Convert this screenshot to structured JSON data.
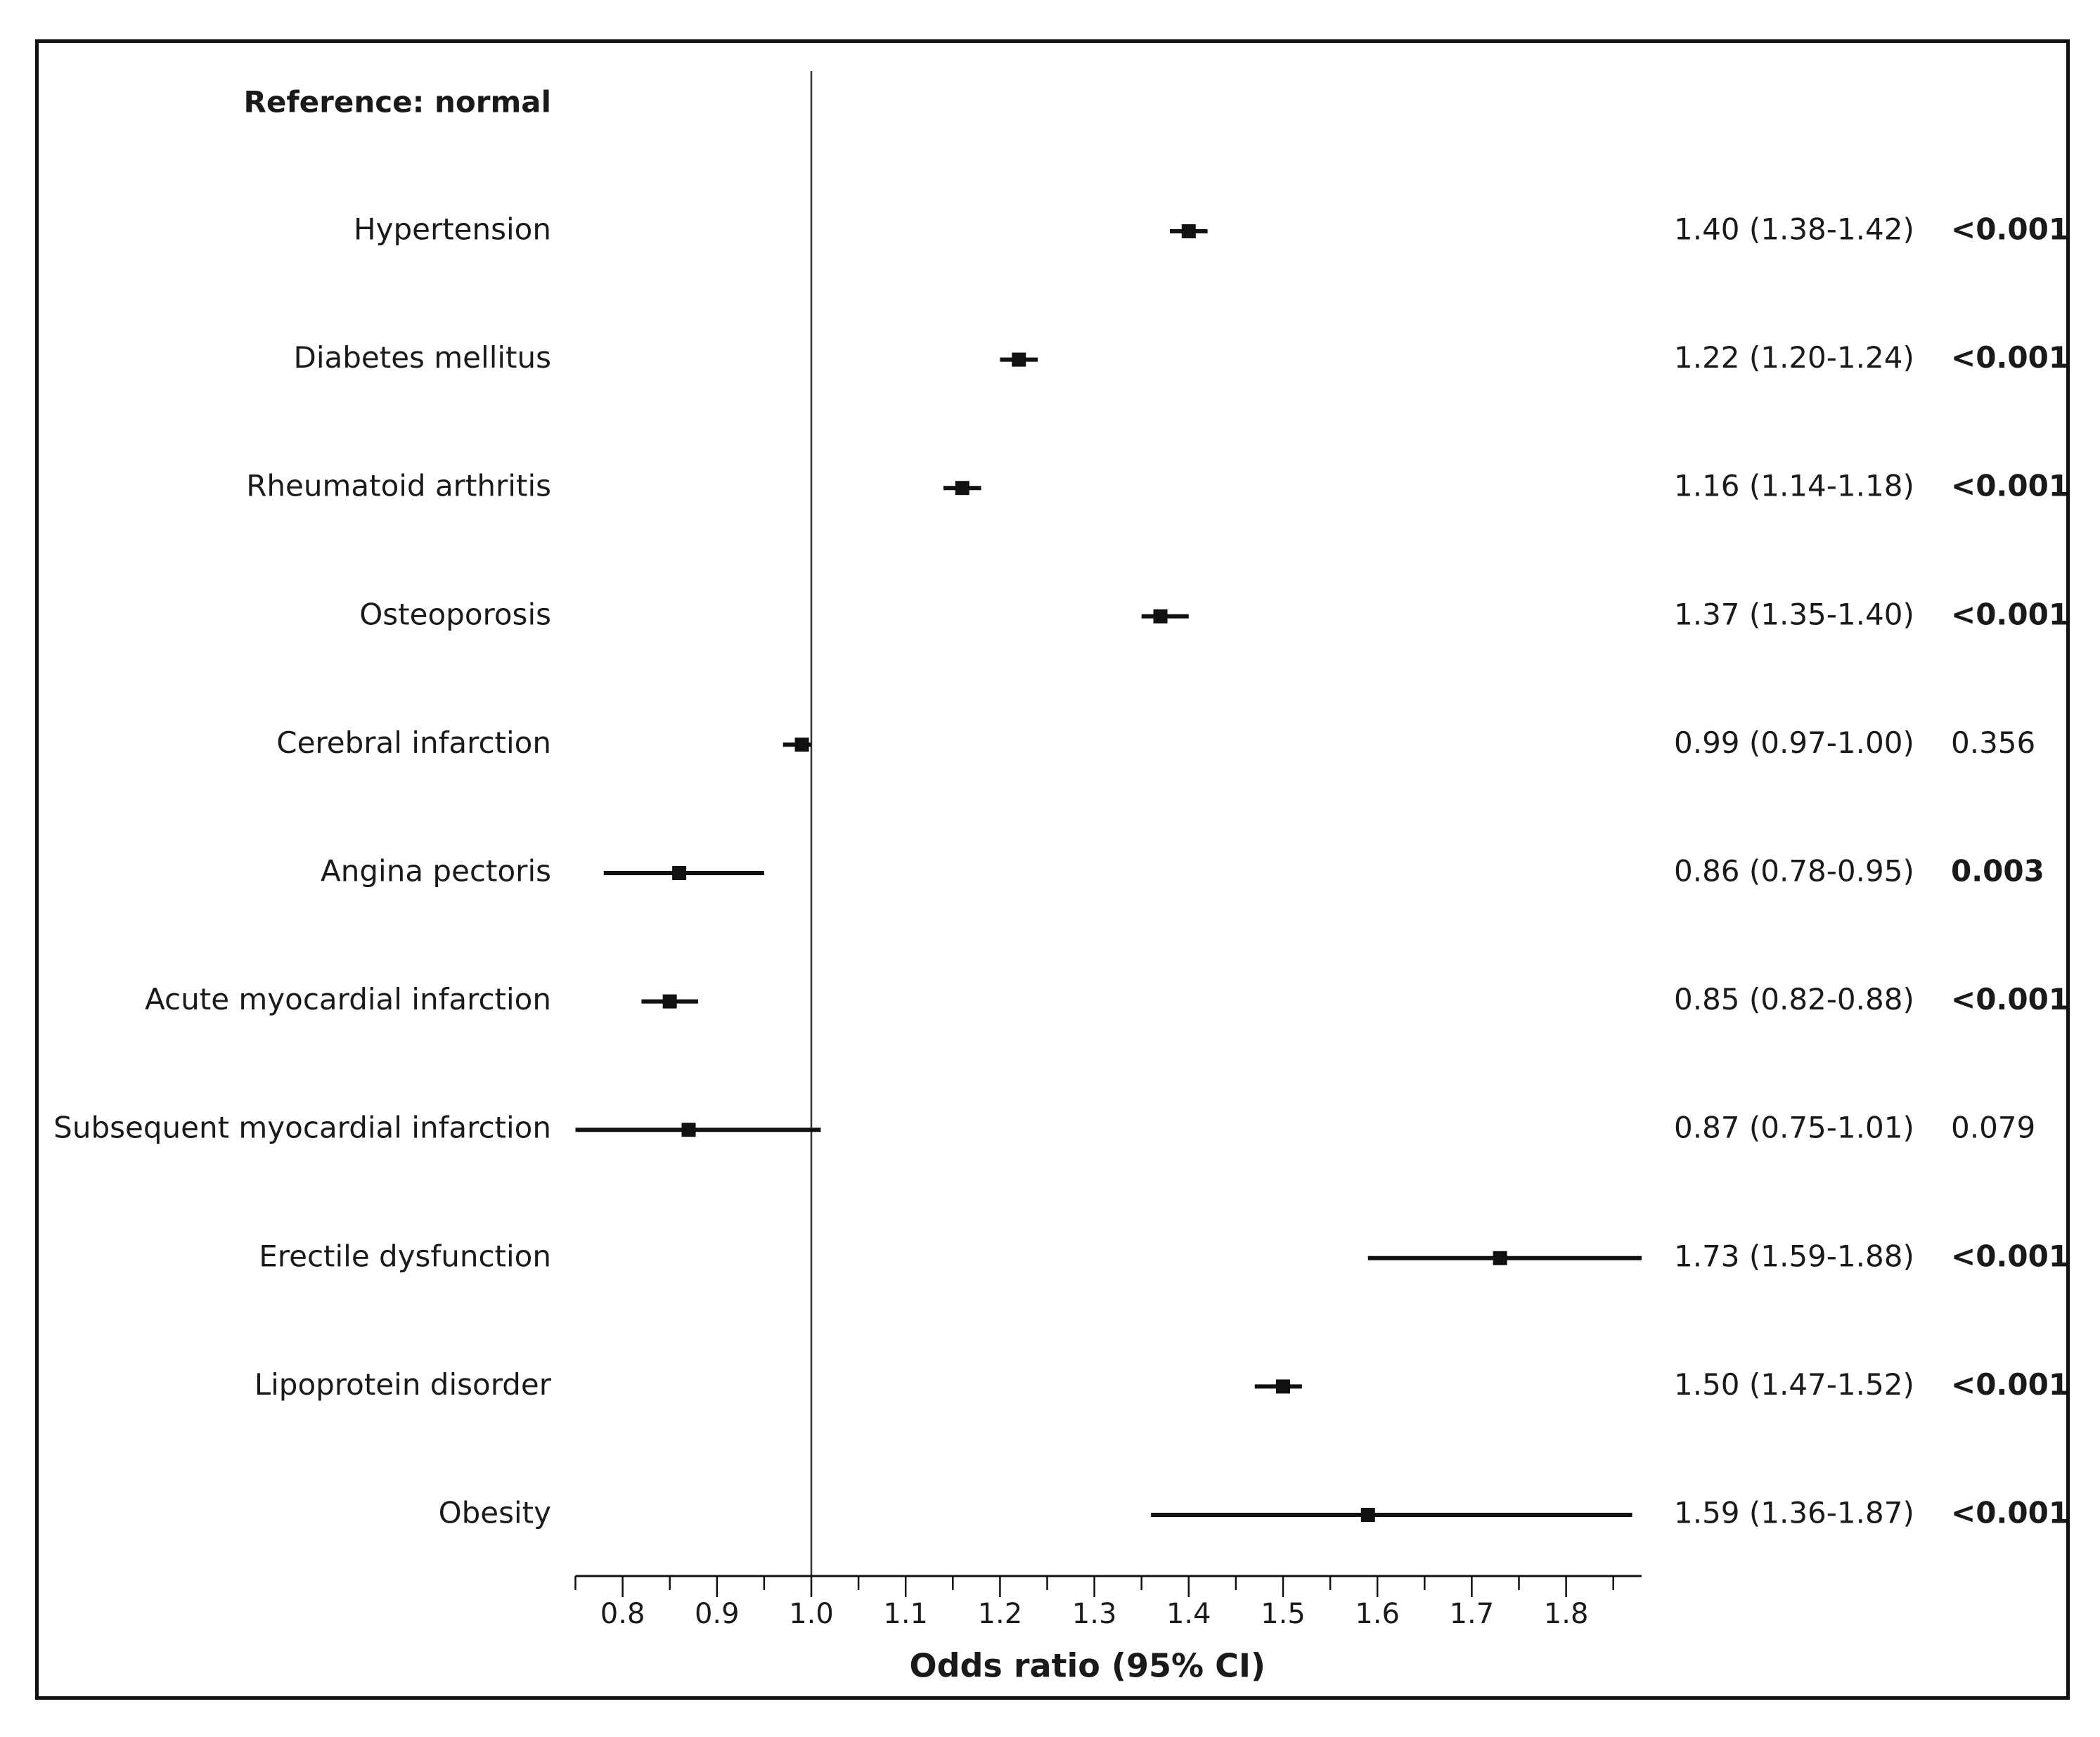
{
  "chart_data": {
    "type": "forest",
    "reference_label": "Reference: normal",
    "xlabel": "Odds ratio (95% CI)",
    "xlim": [
      0.75,
      1.88
    ],
    "null_line": 1.0,
    "xticks": [
      0.8,
      0.9,
      1.0,
      1.1,
      1.2,
      1.3,
      1.4,
      1.5,
      1.6,
      1.7,
      1.8
    ],
    "xtick_labels": [
      "0.8",
      "0.9",
      "1.0",
      "1.1",
      "1.2",
      "1.3",
      "1.4",
      "1.5",
      "1.6",
      "1.7",
      "1.8"
    ],
    "rows": [
      {
        "label": "Hypertension",
        "or": 1.4,
        "lower": 1.38,
        "upper": 1.42,
        "or_text": "1.40 (1.38-1.42)",
        "p": "<0.001",
        "p_bold": true
      },
      {
        "label": "Diabetes mellitus",
        "or": 1.22,
        "lower": 1.2,
        "upper": 1.24,
        "or_text": "1.22 (1.20-1.24)",
        "p": "<0.001",
        "p_bold": true
      },
      {
        "label": "Rheumatoid arthritis",
        "or": 1.16,
        "lower": 1.14,
        "upper": 1.18,
        "or_text": "1.16 (1.14-1.18)",
        "p": "<0.001",
        "p_bold": true
      },
      {
        "label": "Osteoporosis",
        "or": 1.37,
        "lower": 1.35,
        "upper": 1.4,
        "or_text": "1.37 (1.35-1.40)",
        "p": "<0.001",
        "p_bold": true
      },
      {
        "label": "Cerebral infarction",
        "or": 0.99,
        "lower": 0.97,
        "upper": 1.0,
        "or_text": "0.99 (0.97-1.00)",
        "p": "0.356",
        "p_bold": false
      },
      {
        "label": "Angina pectoris",
        "or": 0.86,
        "lower": 0.78,
        "upper": 0.95,
        "or_text": "0.86 (0.78-0.95)",
        "p": "0.003",
        "p_bold": true
      },
      {
        "label": "Acute myocardial infarction",
        "or": 0.85,
        "lower": 0.82,
        "upper": 0.88,
        "or_text": "0.85 (0.82-0.88)",
        "p": "<0.001",
        "p_bold": true
      },
      {
        "label": "Subsequent myocardial infarction",
        "or": 0.87,
        "lower": 0.75,
        "upper": 1.01,
        "or_text": "0.87 (0.75-1.01)",
        "p": "0.079",
        "p_bold": false
      },
      {
        "label": "Erectile dysfunction",
        "or": 1.73,
        "lower": 1.59,
        "upper": 1.88,
        "or_text": "1.73 (1.59-1.88)",
        "p": "<0.001",
        "p_bold": true
      },
      {
        "label": "Lipoprotein disorder",
        "or": 1.5,
        "lower": 1.47,
        "upper": 1.52,
        "or_text": "1.50 (1.47-1.52)",
        "p": "<0.001",
        "p_bold": true
      },
      {
        "label": "Obesity",
        "or": 1.59,
        "lower": 1.36,
        "upper": 1.87,
        "or_text": "1.59 (1.36-1.87)",
        "p": "<0.001",
        "p_bold": true
      }
    ]
  }
}
